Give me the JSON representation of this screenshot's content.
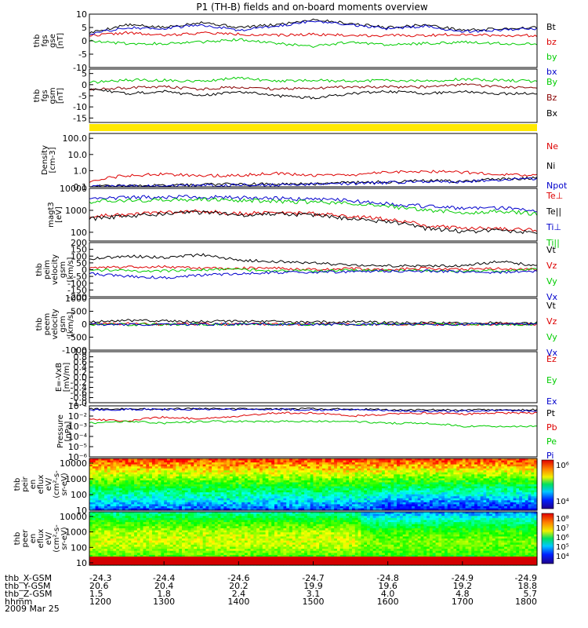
{
  "title": "P1 (TH-B) fields and on-board moments overview",
  "chart_data": [
    {
      "type": "line",
      "ylabel": [
        "thb",
        "fgs",
        "gse",
        "[nT]"
      ],
      "ylim": [
        -10,
        10
      ],
      "yticks": [
        "10",
        "5",
        "0",
        "-5",
        "-10"
      ],
      "yticks_values": [
        10,
        5,
        0,
        -5,
        -10
      ],
      "series": [
        {
          "name": "Bt",
          "color": "#000000",
          "approx": [
            3.0,
            6.0,
            5.0,
            7.0,
            5.0,
            6.0,
            8.0,
            6.5,
            5.0,
            6.0,
            4.0,
            4.5,
            5.0
          ]
        },
        {
          "name": "bz",
          "color": "#dd0000",
          "approx": [
            2.0,
            3.0,
            2.0,
            3.0,
            2.5,
            2.0,
            2.5,
            2.0,
            2.0,
            2.0,
            2.5,
            2.0,
            2.0
          ]
        },
        {
          "name": "by",
          "color": "#00cc00",
          "approx": [
            0.0,
            -1.0,
            -1.0,
            -0.5,
            0.5,
            -1.0,
            -2.0,
            -0.5,
            -1.5,
            -1.0,
            -0.5,
            -1.0,
            -1.0
          ]
        },
        {
          "name": "bx",
          "color": "#0000cc",
          "approx": [
            2.5,
            5.0,
            4.5,
            6.0,
            4.0,
            5.5,
            7.5,
            6.0,
            4.5,
            5.5,
            3.5,
            4.0,
            4.5
          ]
        }
      ]
    },
    {
      "type": "line",
      "ylabel": [
        "thb",
        "fgs",
        "gsm",
        "[nT]"
      ],
      "ylim": [
        -17,
        7
      ],
      "yticks": [
        "5",
        "0",
        "-5",
        "-10",
        "-15"
      ],
      "yticks_values": [
        5,
        0,
        -5,
        -10,
        -15
      ],
      "series": [
        {
          "name": "By",
          "color": "#00cc00",
          "approx": [
            1.0,
            2.0,
            2.0,
            1.5,
            3.0,
            1.5,
            2.0,
            1.5,
            2.0,
            1.5,
            2.5,
            2.0,
            1.5
          ]
        },
        {
          "name": "Bz",
          "color": "#880000",
          "approx": [
            -2.0,
            -1.5,
            -1.0,
            -2.0,
            -1.0,
            -2.0,
            -1.5,
            -1.0,
            -1.0,
            -1.0,
            0.0,
            -1.0,
            -1.5
          ]
        },
        {
          "name": "Bx",
          "color": "#000000",
          "approx": [
            -2.0,
            -4.0,
            -3.0,
            -5.0,
            -3.0,
            -5.0,
            -6.0,
            -4.0,
            -3.0,
            -4.0,
            -3.0,
            -4.0,
            -4.0
          ]
        }
      ]
    },
    {
      "type": "line",
      "ylabel": [
        "Density",
        "[cm-3]"
      ],
      "yscale": "log",
      "ylim": [
        0.1,
        200
      ],
      "yticks": [
        "100.0",
        "10.0",
        "1.0",
        "0.1"
      ],
      "yticks_values": [
        100,
        10,
        1,
        0.1
      ],
      "series": [
        {
          "name": "Ne",
          "color": "#dd0000",
          "approx": [
            0.2,
            0.5,
            0.6,
            0.5,
            0.5,
            0.7,
            0.5,
            0.5,
            0.8,
            0.9,
            0.8,
            0.6,
            0.5
          ]
        },
        {
          "name": "Ni",
          "color": "#000000",
          "approx": [
            0.1,
            0.12,
            0.12,
            0.14,
            0.15,
            0.15,
            0.15,
            0.18,
            0.2,
            0.25,
            0.22,
            0.3,
            0.35
          ]
        },
        {
          "name": "Npot",
          "color": "#0000cc",
          "approx": [
            0.1,
            0.11,
            0.11,
            0.12,
            0.13,
            0.13,
            0.14,
            0.16,
            0.18,
            0.22,
            0.2,
            0.27,
            0.32
          ]
        }
      ]
    },
    {
      "type": "line",
      "ylabel": [
        "magt3",
        "[eV]"
      ],
      "yscale": "log",
      "ylim": [
        40,
        10000
      ],
      "yticks": [
        "10000",
        "1000",
        "100"
      ],
      "yticks_values": [
        10000,
        1000,
        100
      ],
      "series": [
        {
          "name": "Te⊥",
          "color": "#dd0000",
          "approx": [
            500,
            650,
            800,
            900,
            700,
            800,
            700,
            500,
            400,
            200,
            150,
            150,
            120
          ]
        },
        {
          "name": "Te||",
          "color": "#000000",
          "approx": [
            400,
            550,
            700,
            800,
            600,
            700,
            600,
            400,
            300,
            150,
            110,
            120,
            100
          ]
        },
        {
          "name": "Ti⊥",
          "color": "#0000cc",
          "approx": [
            3500,
            3800,
            4000,
            4000,
            3800,
            3500,
            3200,
            2800,
            2000,
            1500,
            1200,
            1300,
            1000
          ]
        },
        {
          "name": "Ti||",
          "color": "#00cc00",
          "approx": [
            2500,
            2800,
            3000,
            3100,
            2900,
            2600,
            2400,
            2000,
            1500,
            1000,
            800,
            900,
            700
          ]
        }
      ]
    },
    {
      "type": "line",
      "ylabel": [
        "thb",
        "peim",
        "velocity",
        "gsm",
        "[km/s]"
      ],
      "ylim": [
        -200,
        200
      ],
      "yticks": [
        "200",
        "150",
        "100",
        "50",
        "0",
        "-50",
        "-100",
        "-150",
        "-200"
      ],
      "yticks_values": [
        200,
        150,
        100,
        50,
        0,
        -50,
        -100,
        -150,
        -200
      ],
      "series": [
        {
          "name": "Vt",
          "color": "#000000",
          "approx": [
            80,
            100,
            90,
            110,
            70,
            60,
            50,
            30,
            30,
            25,
            30,
            60,
            30
          ]
        },
        {
          "name": "Vz",
          "color": "#dd0000",
          "approx": [
            10,
            20,
            20,
            10,
            10,
            10,
            0,
            10,
            0,
            10,
            0,
            10,
            0
          ]
        },
        {
          "name": "Vy",
          "color": "#00cc00",
          "approx": [
            0,
            -10,
            -10,
            0,
            0,
            -10,
            -10,
            -5,
            -5,
            -5,
            -10,
            -10,
            0
          ]
        },
        {
          "name": "Vx",
          "color": "#0000cc",
          "approx": [
            -30,
            -50,
            -60,
            -40,
            -30,
            -20,
            -20,
            -15,
            -10,
            -10,
            -15,
            -20,
            -10
          ]
        }
      ]
    },
    {
      "type": "line",
      "ylabel": [
        "thb",
        "peem",
        "velocity",
        "gsm",
        "[km/s]"
      ],
      "ylim": [
        -1000,
        1000
      ],
      "yticks": [
        "1000",
        "500",
        "0",
        "-500",
        "-1000"
      ],
      "yticks_values": [
        1000,
        500,
        0,
        -500,
        -1000
      ],
      "series": [
        {
          "name": "Vt",
          "color": "#000000",
          "approx": [
            100,
            150,
            120,
            100,
            120,
            100,
            80,
            100,
            60,
            60,
            50,
            60,
            50
          ]
        },
        {
          "name": "Vz",
          "color": "#dd0000",
          "approx": [
            0,
            20,
            0,
            10,
            0,
            10,
            0,
            0,
            0,
            0,
            0,
            0,
            0
          ]
        },
        {
          "name": "Vy",
          "color": "#00cc00",
          "approx": [
            0,
            -20,
            0,
            -10,
            0,
            -10,
            0,
            0,
            0,
            0,
            0,
            0,
            0
          ]
        },
        {
          "name": "Vx",
          "color": "#0000cc",
          "approx": [
            0,
            -10,
            0,
            -10,
            0,
            0,
            0,
            0,
            0,
            0,
            0,
            0,
            0
          ]
        }
      ]
    },
    {
      "type": "line",
      "ylabel": [
        "E=-VxB",
        "[mV/m]"
      ],
      "ylim": [
        -1,
        1
      ],
      "yticks": [
        "1.0",
        "0.8",
        "0.6",
        "0.4",
        "0.2",
        "0.0",
        "-0.2",
        "-0.4",
        "-0.6",
        "-0.8",
        "-1.0"
      ],
      "yticks_values": [
        1.0,
        0.8,
        0.6,
        0.4,
        0.2,
        0.0,
        -0.2,
        -0.4,
        -0.6,
        -0.8,
        -1.0
      ],
      "series": [
        {
          "name": "Ez",
          "color": "#dd0000"
        },
        {
          "name": "Ey",
          "color": "#00cc00"
        },
        {
          "name": "Ex",
          "color": "#0000cc"
        }
      ]
    },
    {
      "type": "line",
      "ylabel": [
        "Pressure",
        "[nPa]"
      ],
      "yscale": "log",
      "ylim": [
        1e-06,
        0.1
      ],
      "yticks": [
        "10⁻¹",
        "10⁻²",
        "10⁻³",
        "10⁻⁴",
        "10⁻⁵",
        "10⁻⁶"
      ],
      "yticks_values": [
        0.1,
        0.01,
        0.001,
        0.0001,
        1e-05,
        1e-06
      ],
      "series": [
        {
          "name": "Pt",
          "color": "#000000",
          "approx": [
            0.05,
            0.05,
            0.05,
            0.05,
            0.05,
            0.05,
            0.05,
            0.05,
            0.04,
            0.04,
            0.04,
            0.04,
            0.04
          ]
        },
        {
          "name": "Pb",
          "color": "#dd0000",
          "approx": [
            0.005,
            0.003,
            0.008,
            0.005,
            0.01,
            0.02,
            0.02,
            0.01,
            0.015,
            0.02,
            0.015,
            0.02,
            0.02
          ]
        },
        {
          "name": "Pe",
          "color": "#00cc00",
          "approx": [
            0.002,
            0.003,
            0.002,
            0.003,
            0.003,
            0.003,
            0.003,
            0.003,
            0.002,
            0.002,
            0.001,
            0.001,
            0.001
          ]
        },
        {
          "name": "Pi",
          "color": "#0000cc",
          "approx": [
            0.04,
            0.045,
            0.045,
            0.045,
            0.045,
            0.045,
            0.04,
            0.04,
            0.035,
            0.03,
            0.03,
            0.035,
            0.03
          ]
        }
      ]
    },
    {
      "type": "heatmap",
      "ylabel": [
        "thb",
        "peir",
        "en",
        "eflux",
        "eV/",
        "(cm²-s-",
        "sr-eV)"
      ],
      "yscale": "log",
      "ylim": [
        10,
        20000
      ],
      "yticks": [
        "10000",
        "1000",
        "100",
        "10"
      ],
      "yticks_values": [
        10000,
        1000,
        100,
        10
      ],
      "colorbar_ticks": [
        "10⁶",
        "10⁴"
      ]
    },
    {
      "type": "heatmap",
      "ylabel": [
        "thb",
        "peer",
        "en",
        "eflux",
        "eV/",
        "(cm²-s-",
        "sr-eV)"
      ],
      "yscale": "log",
      "ylim": [
        7,
        20000
      ],
      "yticks": [
        "10000",
        "1000",
        "100",
        "10"
      ],
      "yticks_values": [
        10000,
        1000,
        100,
        10
      ],
      "colorbar_ticks": [
        "10⁸",
        "10⁷",
        "10⁶",
        "10⁵",
        "10⁴"
      ]
    }
  ],
  "x_axis": {
    "ticks": [
      1200,
      1300,
      1400,
      1500,
      1600,
      1700,
      1800
    ],
    "rows": [
      {
        "label": "thb_X-GSM",
        "values": [
          "-24.3",
          "-24.4",
          "-24.6",
          "-24.7",
          "-24.8",
          "-24.9",
          "-24.9"
        ]
      },
      {
        "label": "thb_Y-GSM",
        "values": [
          "20.6",
          "20.4",
          "20.2",
          "19.9",
          "19.6",
          "19.2",
          "18.8"
        ]
      },
      {
        "label": "thb_Z-GSM",
        "values": [
          "1.5",
          "1.8",
          "2.4",
          "3.1",
          "4.0",
          "4.8",
          "5.7"
        ]
      },
      {
        "label": "hhmm",
        "values": [
          "1200",
          "1300",
          "1400",
          "1500",
          "1600",
          "1700",
          "1800"
        ]
      }
    ],
    "date": "2009 Mar 25"
  }
}
